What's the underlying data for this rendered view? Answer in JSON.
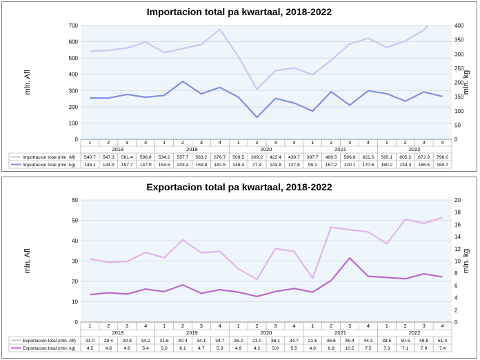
{
  "charts": [
    {
      "title": "Importacion total pa kwartaal, 2018-2022",
      "ylabel_left": "mln. Afl",
      "ylabel_right": "mln. kg",
      "left_ticks": [
        "0",
        "100",
        "200",
        "300",
        "400",
        "500",
        "600",
        "700"
      ],
      "right_ticks": [
        "0",
        "50",
        "100",
        "150",
        "200",
        "250",
        "300",
        "350",
        "400"
      ]
    },
    {
      "title": "Exportacion total pa kwartaal, 2018-2022",
      "ylabel_left": "mln. Afl",
      "ylabel_right": "mln. kg",
      "left_ticks": [
        "0",
        "10",
        "20",
        "30",
        "40",
        "50",
        "60"
      ],
      "right_ticks": [
        "0",
        "2",
        "4",
        "6",
        "8",
        "10",
        "12",
        "14",
        "16",
        "18",
        "20"
      ]
    }
  ],
  "chart_data": [
    {
      "type": "line",
      "title": "Importacion total pa kwartaal, 2018-2022",
      "quarters": [
        "1",
        "2",
        "3",
        "4",
        "1",
        "2",
        "3",
        "4",
        "1",
        "2",
        "3",
        "4",
        "1",
        "2",
        "3",
        "4",
        "1",
        "2",
        "3",
        "4"
      ],
      "years": [
        "2018",
        "2019",
        "2020",
        "2021",
        "2022"
      ],
      "ylabel": "mln. Afl",
      "y2label": "mln. kg",
      "ylim": [
        0,
        700
      ],
      "y2lim": [
        0,
        400
      ],
      "grid": true,
      "series": [
        {
          "name": "Importacion total (mln. Afl)",
          "axis": "left",
          "color": "#c9c8f0",
          "labels": [
            "540.7",
            "547.3",
            "561.4",
            "598.8",
            "534.2",
            "557.7",
            "583.2",
            "676.7",
            "509.5",
            "309.2",
            "422.4",
            "438.7",
            "397.7",
            "486.5",
            "586.8",
            "621.5",
            "565.1",
            "605.2",
            "672.3",
            "796.0"
          ],
          "values": [
            540.7,
            547.3,
            561.4,
            598.8,
            534.2,
            557.7,
            583.2,
            676.7,
            509.5,
            309.2,
            422.4,
            438.7,
            397.7,
            486.5,
            586.8,
            621.5,
            565.1,
            605.2,
            672.3,
            796.0
          ]
        },
        {
          "name": "Importacion total (mln. kg)",
          "axis": "right",
          "color": "#8090e0",
          "labels": [
            "145.1",
            "144.9",
            "157.7",
            "147.9",
            "154.5",
            "203.4",
            "159.8",
            "182.5",
            "148.4",
            "77.4",
            "143.8",
            "127.8",
            "99.1",
            "167.2",
            "120.1",
            "170.6",
            "160.2",
            "134.3",
            "166.5",
            "150.7"
          ],
          "values": [
            145.1,
            144.9,
            157.7,
            147.9,
            154.5,
            203.4,
            159.8,
            182.5,
            148.4,
            77.4,
            143.8,
            127.8,
            99.1,
            167.2,
            120.1,
            170.6,
            160.2,
            134.3,
            166.5,
            150.7
          ]
        }
      ]
    },
    {
      "type": "line",
      "title": "Exportacion total pa kwartaal, 2018-2022",
      "quarters": [
        "1",
        "2",
        "3",
        "4",
        "1",
        "2",
        "3",
        "4",
        "1",
        "2",
        "3",
        "4",
        "1",
        "2",
        "3",
        "4",
        "1",
        "2",
        "3",
        "4"
      ],
      "years": [
        "2018",
        "2019",
        "2020",
        "2021",
        "2022"
      ],
      "ylabel": "mln. Afl",
      "y2label": "mln. kg",
      "ylim": [
        0,
        60
      ],
      "y2lim": [
        0,
        20
      ],
      "grid": true,
      "series": [
        {
          "name": "Exportacion total (mln. Afl)",
          "axis": "left",
          "color": "#e3b4ea",
          "labels": [
            "31.0",
            "29.4",
            "29.8",
            "34.2",
            "31.6",
            "40.4",
            "34.1",
            "34.7",
            "26.2",
            "21.0",
            "36.1",
            "34.7",
            "21.6",
            "46.6",
            "45.4",
            "44.3",
            "38.5",
            "50.5",
            "48.5",
            "51.4"
          ],
          "values": [
            31.0,
            29.4,
            29.8,
            34.2,
            31.6,
            40.4,
            34.1,
            34.7,
            26.2,
            21.0,
            36.1,
            34.7,
            21.6,
            46.6,
            45.4,
            44.3,
            38.5,
            50.5,
            48.5,
            51.4
          ]
        },
        {
          "name": "Exportacion total (mln. kg)",
          "axis": "right",
          "color": "#bb66c8",
          "labels": [
            "4.5",
            "4.8",
            "4.6",
            "5.4",
            "5.0",
            "6.1",
            "4.7",
            "5.3",
            "4.9",
            "4.2",
            "5.0",
            "5.5",
            "4.9",
            "6.8",
            "10.5",
            "7.5",
            "7.3",
            "7.1",
            "7.9",
            "7.4"
          ],
          "values": [
            4.5,
            4.8,
            4.6,
            5.4,
            5.0,
            6.1,
            4.7,
            5.3,
            4.9,
            4.2,
            5.0,
            5.5,
            4.9,
            6.8,
            10.5,
            7.5,
            7.3,
            7.1,
            7.9,
            7.4
          ]
        }
      ]
    }
  ]
}
